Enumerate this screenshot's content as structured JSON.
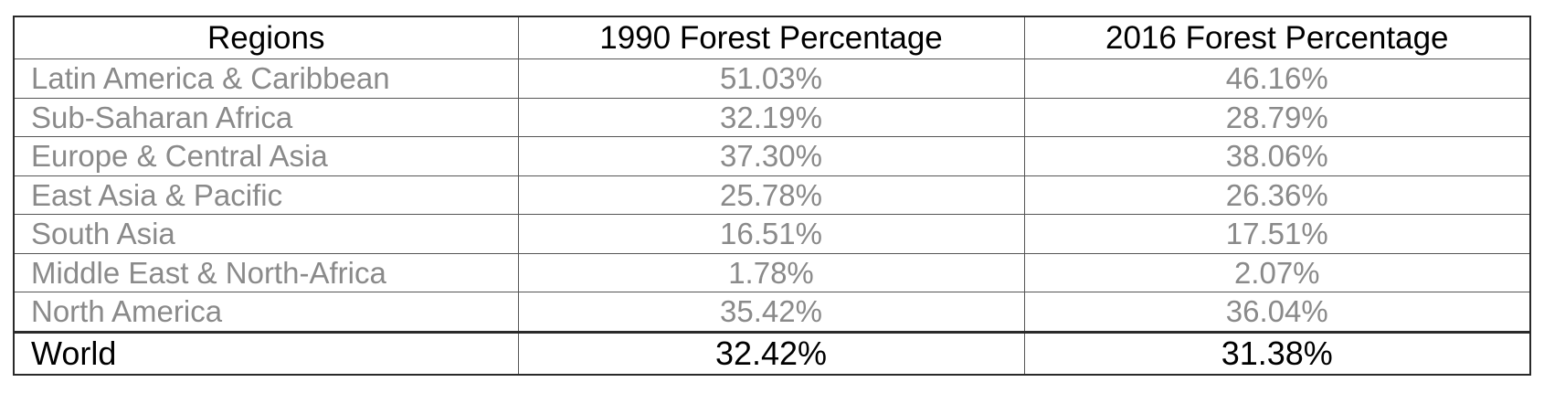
{
  "chart_data": {
    "type": "table",
    "columns": [
      "Regions",
      "1990 Forest Percentage",
      "2016 Forest Percentage"
    ],
    "rows": [
      [
        "Latin America & Caribbean",
        "51.03%",
        "46.16%"
      ],
      [
        "Sub-Saharan Africa",
        "32.19%",
        "28.79%"
      ],
      [
        "Europe & Central Asia",
        "37.30%",
        "38.06%"
      ],
      [
        "East Asia & Pacific",
        "25.78%",
        "26.36%"
      ],
      [
        "South Asia",
        "16.51%",
        "17.51%"
      ],
      [
        "Middle East & North-Africa",
        "1.78%",
        "2.07%"
      ],
      [
        "North America",
        "35.42%",
        "36.04%"
      ]
    ],
    "total_row": [
      "World",
      "32.42%",
      "31.38%"
    ],
    "colors": {
      "header_text": "#000000",
      "body_text": "#8a8a8a",
      "total_text": "#000000",
      "border": "#555555"
    }
  }
}
